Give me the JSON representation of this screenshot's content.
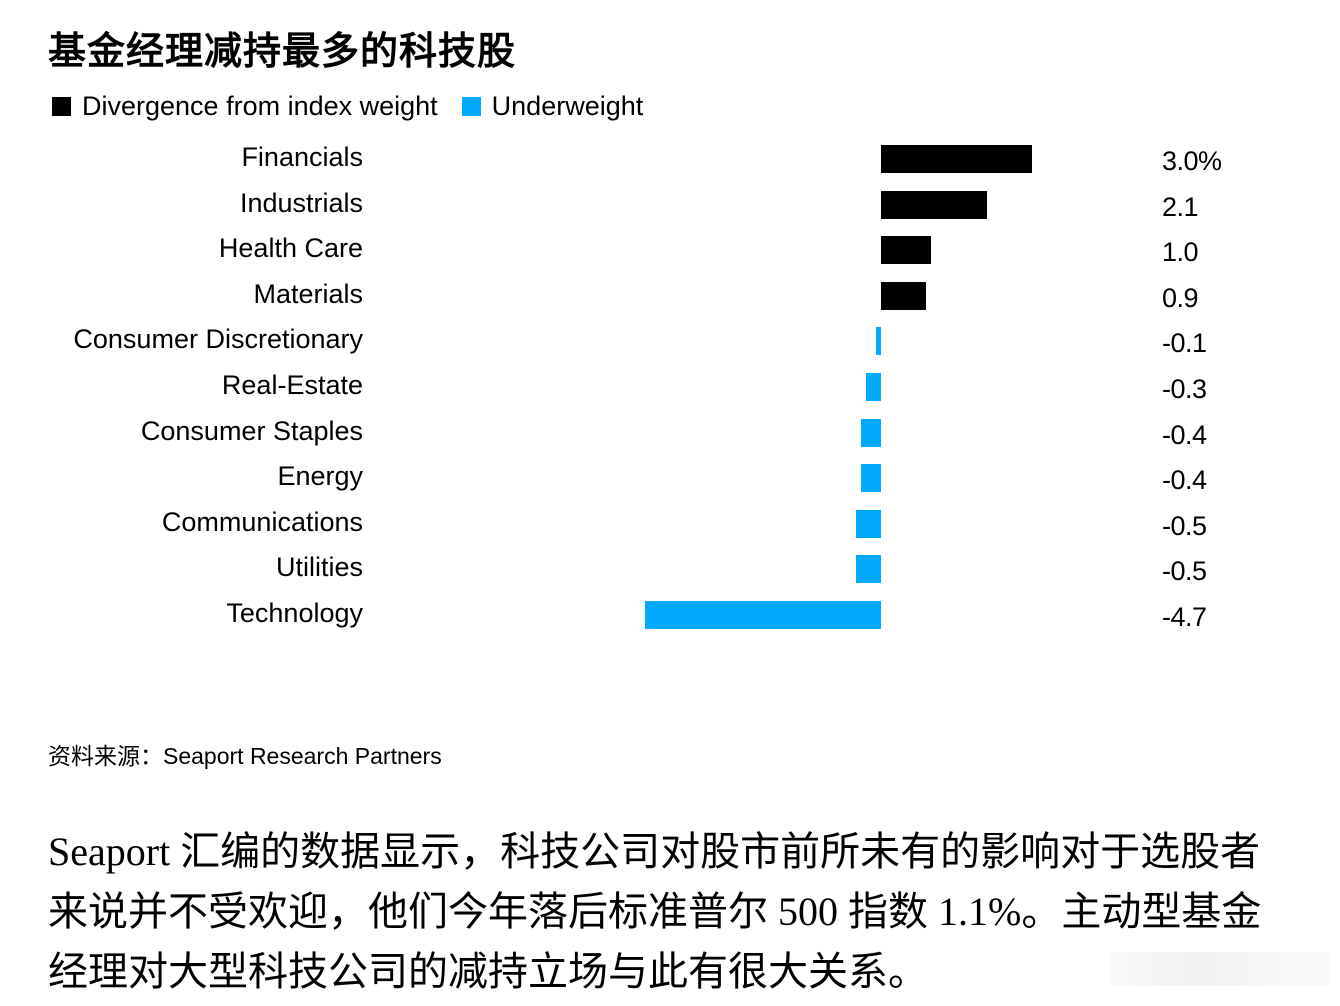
{
  "title": "基金经理减持最多的科技股",
  "legend": [
    {
      "label": "Divergence from index weight",
      "color": "#000000"
    },
    {
      "label": "Underweight",
      "color": "#00AAFF"
    }
  ],
  "colors": {
    "positive": "#000000",
    "negative": "#00AAFF"
  },
  "rows": [
    {
      "label": "Financials",
      "value_label": "3.0%"
    },
    {
      "label": "Industrials",
      "value_label": "2.1"
    },
    {
      "label": "Health Care",
      "value_label": "1.0"
    },
    {
      "label": "Materials",
      "value_label": "0.9"
    },
    {
      "label": "Consumer Discretionary",
      "value_label": "-0.1"
    },
    {
      "label": "Real-Estate",
      "value_label": "-0.3"
    },
    {
      "label": "Consumer Staples",
      "value_label": "-0.4"
    },
    {
      "label": "Energy",
      "value_label": "-0.4"
    },
    {
      "label": "Communications",
      "value_label": "-0.5"
    },
    {
      "label": "Utilities",
      "value_label": "-0.5"
    },
    {
      "label": "Technology",
      "value_label": "-4.7"
    }
  ],
  "source": "资料来源：Seaport Research Partners",
  "body_text": "Seaport 汇编的数据显示，科技公司对股市前所未有的影响对于选股者来说并不受欢迎，他们今年落后标准普尔 500 指数 1.1%。主动型基金经理对大型科技公司的减持立场与此有很大关系。",
  "chart_data": {
    "type": "bar",
    "orientation": "horizontal",
    "title": "基金经理减持最多的科技股",
    "xlabel": "",
    "ylabel": "",
    "unit": "%",
    "categories": [
      "Financials",
      "Industrials",
      "Health Care",
      "Materials",
      "Consumer Discretionary",
      "Real-Estate",
      "Consumer Staples",
      "Energy",
      "Communications",
      "Utilities",
      "Technology"
    ],
    "series": [
      {
        "name": "Divergence from index weight",
        "values": [
          3.0,
          2.1,
          1.0,
          0.9,
          -0.1,
          -0.3,
          -0.4,
          -0.4,
          -0.5,
          -0.5,
          -4.7
        ]
      }
    ],
    "legend": [
      "Divergence from index weight",
      "Underweight"
    ],
    "legend_position": "top-left",
    "grid": false,
    "xlim": [
      -4.7,
      3.0
    ],
    "notes": "Positive values in black; negative (underweight) values in blue",
    "source": "Seaport Research Partners"
  }
}
